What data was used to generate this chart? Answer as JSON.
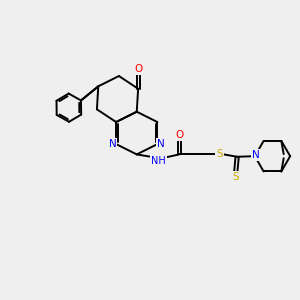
{
  "background_color": "#efefef",
  "atom_colors": {
    "O": "#ff0000",
    "N": "#0000ff",
    "S": "#ccaa00",
    "C": "#000000",
    "H": "#000000"
  },
  "bond_color": "#000000",
  "bond_width": 1.4,
  "figsize": [
    3.0,
    3.0
  ],
  "dpi": 100
}
